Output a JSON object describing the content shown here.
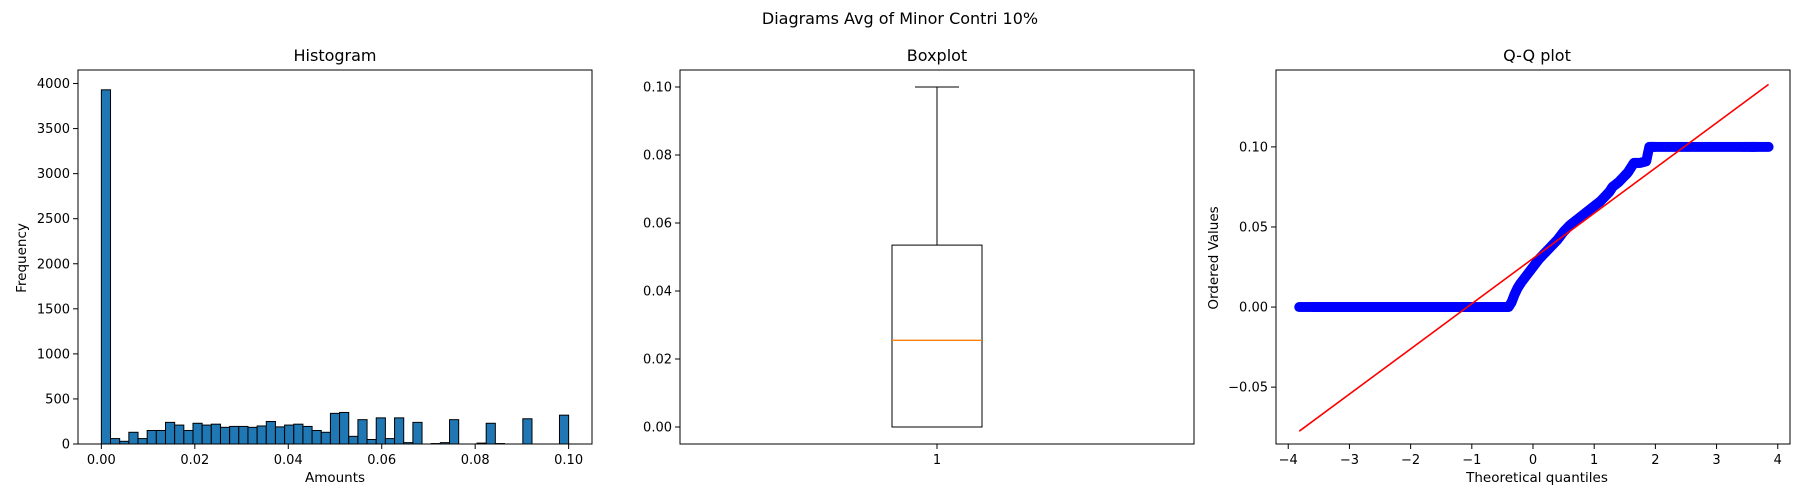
{
  "suptitle": "Diagrams Avg of Minor Contri 10%",
  "chart_data": [
    {
      "type": "bar",
      "title": "Histogram",
      "xlabel": "Amounts",
      "ylabel": "Frequency",
      "xlim": [
        -0.005,
        0.105
      ],
      "ylim": [
        0,
        4150
      ],
      "xticks": [
        0.0,
        0.02,
        0.04,
        0.06,
        0.08,
        0.1
      ],
      "xtick_labels": [
        "0.00",
        "0.02",
        "0.04",
        "0.06",
        "0.08",
        "0.10"
      ],
      "yticks": [
        0,
        500,
        1000,
        1500,
        2000,
        2500,
        3000,
        3500,
        4000
      ],
      "bin_edges_range": [
        0.0,
        0.1
      ],
      "counts": [
        3930,
        60,
        30,
        130,
        60,
        150,
        150,
        240,
        210,
        150,
        230,
        210,
        220,
        185,
        195,
        195,
        185,
        200,
        250,
        190,
        210,
        220,
        195,
        150,
        130,
        340,
        350,
        85,
        270,
        50,
        290,
        60,
        290,
        15,
        240,
        0,
        5,
        15,
        270,
        0,
        0,
        10,
        230,
        5,
        0,
        0,
        280,
        0,
        0,
        0,
        320
      ],
      "bar_color": "#1f77b4",
      "edge_color": "#000000"
    },
    {
      "type": "box",
      "title": "Boxplot",
      "xlim": [
        0.5,
        1.5
      ],
      "ylim": [
        -0.005,
        0.105
      ],
      "xticks": [
        1
      ],
      "xtick_labels": [
        "1"
      ],
      "yticks": [
        0.0,
        0.02,
        0.04,
        0.06,
        0.08,
        0.1
      ],
      "ytick_labels": [
        "0.00",
        "0.02",
        "0.04",
        "0.06",
        "0.08",
        "0.10"
      ],
      "whisker_low": 0.0,
      "q1": 0.0,
      "median": 0.0255,
      "q3": 0.0535,
      "whisker_high": 0.1,
      "median_color": "#ff7f0e"
    },
    {
      "type": "scatter",
      "title": "Q-Q plot",
      "xlabel": "Theoretical quantiles",
      "ylabel": "Ordered Values",
      "xlim": [
        -4.2,
        4.2
      ],
      "ylim": [
        -0.0855,
        0.148
      ],
      "xticks": [
        -4,
        -3,
        -2,
        -1,
        0,
        1,
        2,
        3,
        4
      ],
      "xtick_labels": [
        "−4",
        "−3",
        "−2",
        "−1",
        "0",
        "1",
        "2",
        "3",
        "4"
      ],
      "yticks": [
        -0.05,
        0.0,
        0.05,
        0.1
      ],
      "ytick_labels": [
        "−0.05",
        "0.00",
        "0.05",
        "0.10"
      ],
      "marker_color": "#0000ff",
      "line_color": "#ff0000",
      "points": [
        [
          -3.82,
          0.0
        ],
        [
          -3.6,
          0.0
        ],
        [
          -3.5,
          0.0
        ],
        [
          -3.4,
          0.0
        ],
        [
          -3.3,
          0.0
        ],
        [
          -3.2,
          0.0
        ],
        [
          -3.1,
          0.0
        ],
        [
          -3.0,
          0.0
        ],
        [
          -2.9,
          0.0
        ],
        [
          -2.8,
          0.0
        ],
        [
          -2.7,
          0.0
        ],
        [
          -2.6,
          0.0
        ],
        [
          -2.5,
          0.0
        ],
        [
          -2.4,
          0.0
        ],
        [
          -2.3,
          0.0
        ],
        [
          -2.2,
          0.0
        ],
        [
          -2.1,
          0.0
        ],
        [
          -2.0,
          0.0
        ],
        [
          -1.9,
          0.0
        ],
        [
          -1.8,
          0.0
        ],
        [
          -1.7,
          0.0
        ],
        [
          -1.6,
          0.0
        ],
        [
          -1.5,
          0.0
        ],
        [
          -1.4,
          0.0
        ],
        [
          -1.3,
          0.0
        ],
        [
          -1.2,
          0.0
        ],
        [
          -1.1,
          0.0
        ],
        [
          -1.0,
          0.0
        ],
        [
          -0.9,
          0.0
        ],
        [
          -0.8,
          0.0
        ],
        [
          -0.7,
          0.0
        ],
        [
          -0.6,
          0.0
        ],
        [
          -0.5,
          0.0
        ],
        [
          -0.4,
          0.0
        ],
        [
          -0.35,
          0.003
        ],
        [
          -0.3,
          0.008
        ],
        [
          -0.25,
          0.012
        ],
        [
          -0.2,
          0.015
        ],
        [
          -0.1,
          0.02
        ],
        [
          0.0,
          0.025
        ],
        [
          0.1,
          0.03
        ],
        [
          0.2,
          0.034
        ],
        [
          0.3,
          0.038
        ],
        [
          0.4,
          0.042
        ],
        [
          0.5,
          0.047
        ],
        [
          0.6,
          0.051
        ],
        [
          0.7,
          0.054
        ],
        [
          0.8,
          0.057
        ],
        [
          0.9,
          0.06
        ],
        [
          1.0,
          0.063
        ],
        [
          1.1,
          0.066
        ],
        [
          1.2,
          0.07
        ],
        [
          1.25,
          0.072
        ],
        [
          1.3,
          0.075
        ],
        [
          1.4,
          0.078
        ],
        [
          1.5,
          0.082
        ],
        [
          1.55,
          0.084
        ],
        [
          1.6,
          0.087
        ],
        [
          1.65,
          0.09
        ],
        [
          1.75,
          0.09
        ],
        [
          1.85,
          0.091
        ],
        [
          1.9,
          0.1
        ],
        [
          2.0,
          0.1
        ],
        [
          2.2,
          0.1
        ],
        [
          2.4,
          0.1
        ],
        [
          2.6,
          0.1
        ],
        [
          2.8,
          0.1
        ],
        [
          3.0,
          0.1
        ],
        [
          3.2,
          0.1
        ],
        [
          3.4,
          0.1
        ],
        [
          3.55,
          0.1
        ],
        [
          3.65,
          0.1
        ],
        [
          3.85,
          0.1
        ]
      ],
      "fit_line": [
        [
          -3.82,
          -0.0775
        ],
        [
          3.85,
          0.139
        ]
      ]
    }
  ]
}
